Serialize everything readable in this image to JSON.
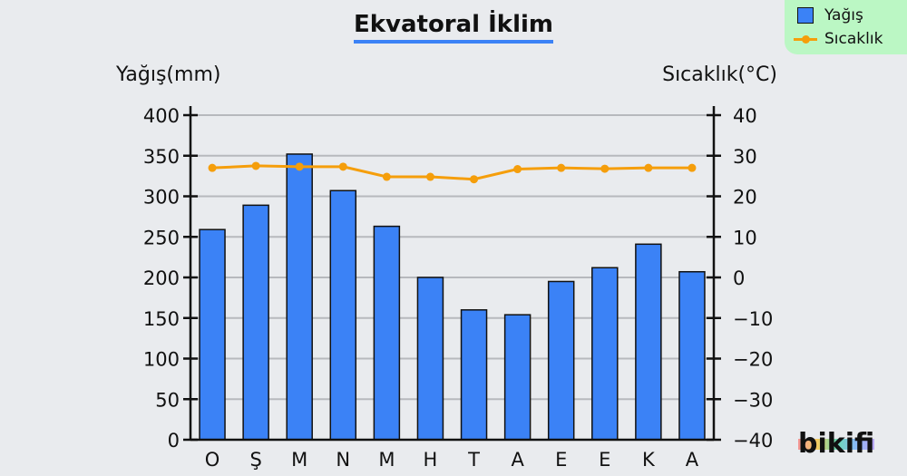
{
  "chart_data": {
    "type": "bar",
    "title": "Ekvatoral İklim",
    "ylabel": "Yağış(mm)",
    "y2label": "Sıcaklık(°C)",
    "categories": [
      "O",
      "Ş",
      "M",
      "N",
      "M",
      "H",
      "T",
      "A",
      "E",
      "E",
      "K",
      "A"
    ],
    "ylim": [
      0,
      400
    ],
    "y2lim": [
      -40,
      40
    ],
    "yticks": [
      "0",
      "50",
      "100",
      "150",
      "200",
      "250",
      "300",
      "350",
      "400"
    ],
    "y2ticks": [
      "−40",
      "−30",
      "−20",
      "−10",
      "0",
      "10",
      "20",
      "30",
      "40"
    ],
    "series": [
      {
        "name": "Yağış",
        "type": "bar",
        "axis": "left",
        "color": "#3b82f6",
        "values": [
          259,
          289,
          352,
          307,
          263,
          200,
          160,
          154,
          195,
          212,
          241,
          207
        ]
      },
      {
        "name": "Sıcaklık",
        "type": "line",
        "axis": "right",
        "color": "#f59e0b",
        "values": [
          27,
          27.5,
          27.3,
          27.3,
          24.8,
          24.8,
          24.2,
          26.7,
          27,
          26.8,
          27,
          27
        ]
      }
    ],
    "grid": true,
    "legend": "top-right"
  },
  "logo_text": "bikifi"
}
